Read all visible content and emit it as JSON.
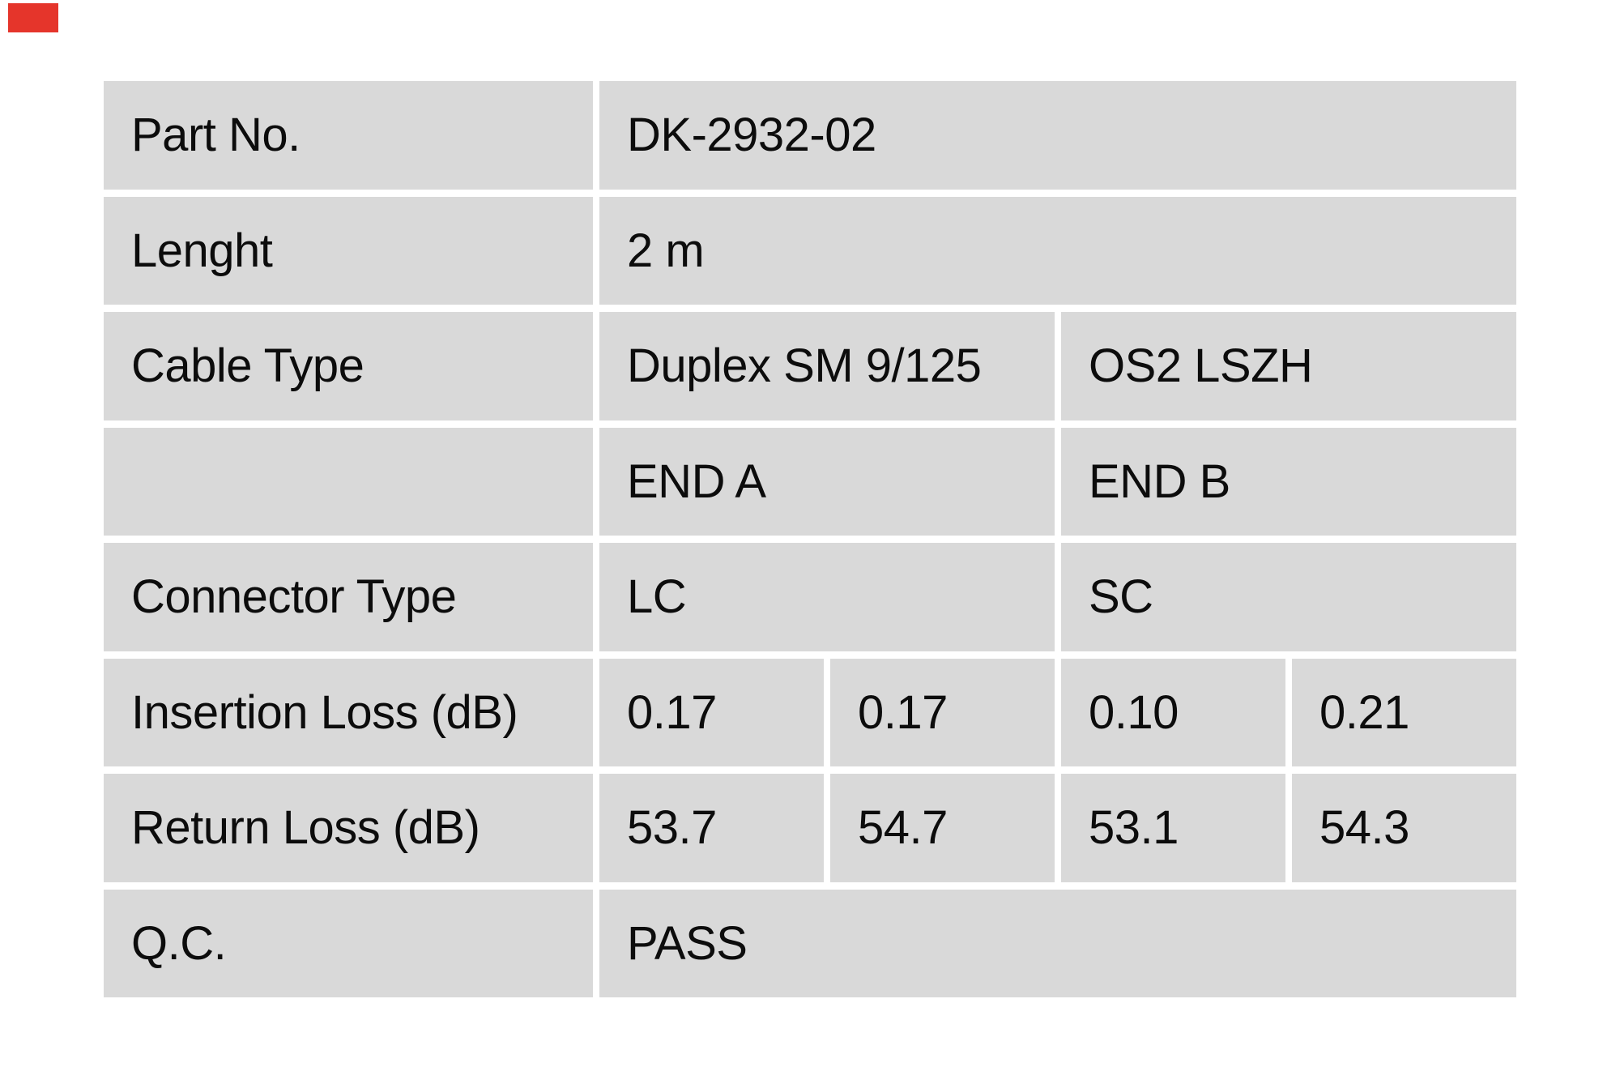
{
  "colors": {
    "page_background": "#ffffff",
    "cell_background": "#d9d9d9",
    "text": "#0c0c0c",
    "logo_red": "#e5352b"
  },
  "brand_marker": {
    "description": "red-logo-block"
  },
  "table": {
    "rows": [
      {
        "label": "Part No.",
        "values": [
          "DK-2932-02"
        ]
      },
      {
        "label": "Lenght",
        "values": [
          "2 m"
        ]
      },
      {
        "label": "Cable Type",
        "values": [
          "Duplex SM 9/125",
          "OS2 LSZH"
        ]
      },
      {
        "label": "",
        "values": [
          "END A",
          "END B"
        ]
      },
      {
        "label": "Connector Type",
        "values": [
          "LC",
          "SC"
        ]
      },
      {
        "label": "Insertion Loss (dB)",
        "values": [
          "0.17",
          "0.17",
          "0.10",
          "0.21"
        ]
      },
      {
        "label": "Return Loss (dB)",
        "values": [
          "53.7",
          "54.7",
          "53.1",
          "54.3"
        ]
      },
      {
        "label": "Q.C.",
        "values": [
          "PASS"
        ]
      }
    ]
  }
}
